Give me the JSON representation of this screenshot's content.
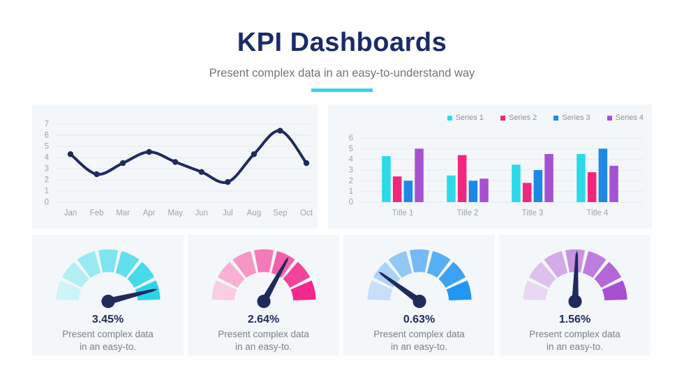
{
  "header": {
    "title": "KPI Dashboards",
    "subtitle": "Present complex data in an easy-to-understand way"
  },
  "chart_data": [
    {
      "type": "line",
      "x": [
        "Jan",
        "Feb",
        "Mar",
        "Apr",
        "May",
        "Jun",
        "Jul",
        "Aug",
        "Sep",
        "Oct"
      ],
      "values": [
        4.3,
        2.5,
        3.5,
        4.5,
        3.6,
        2.7,
        1.8,
        4.3,
        6.4,
        3.5
      ],
      "ylim": [
        0,
        7
      ],
      "yticks": [
        0,
        1,
        2,
        3,
        4,
        5,
        6,
        7
      ],
      "grid": true,
      "legend": "none",
      "line_color": "#1F2A5E"
    },
    {
      "type": "bar",
      "categories": [
        "Title 1",
        "Title 2",
        "Title 3",
        "Title 4"
      ],
      "series": [
        {
          "name": "Series 1",
          "color": "#2BD9EA",
          "values": [
            4.3,
            2.5,
            3.5,
            4.5
          ]
        },
        {
          "name": "Series 2",
          "color": "#F0267F",
          "values": [
            2.4,
            4.4,
            1.8,
            2.8
          ]
        },
        {
          "name": "Series 3",
          "color": "#1E88E5",
          "values": [
            2.0,
            2.0,
            3.0,
            5.0
          ]
        },
        {
          "name": "Series 4",
          "color": "#A751D1",
          "values": [
            5.0,
            2.2,
            4.5,
            3.4
          ]
        }
      ],
      "ylim": [
        0,
        6
      ],
      "yticks": [
        0,
        1,
        2,
        3,
        4,
        5,
        6
      ],
      "grid": true,
      "legend_position": "top-right"
    }
  ],
  "gauges": [
    {
      "value_label": "3.45%",
      "description_line1": "Present complex data",
      "description_line2": "in an easy-to.",
      "needle_angle_deg": 14,
      "segment_colors": [
        "#CDF4F8",
        "#B2EFF5",
        "#97EAF3",
        "#7CE5F0",
        "#61DFEE",
        "#46DAEB",
        "#2BD5E9"
      ]
    },
    {
      "value_label": "2.64%",
      "description_line1": "Present complex data",
      "description_line2": "in an easy-to.",
      "needle_angle_deg": 61,
      "segment_colors": [
        "#F9CDE3",
        "#F8B1D5",
        "#F796C6",
        "#F67AB8",
        "#F55EAA",
        "#F4439B",
        "#F3278D"
      ]
    },
    {
      "value_label": "0.63%",
      "description_line1": "Present complex data",
      "description_line2": "in an easy-to.",
      "needle_angle_deg": 144,
      "segment_colors": [
        "#C7DFF8",
        "#ABD3F7",
        "#90C7F6",
        "#74BAF6",
        "#58AEF5",
        "#3DA2F4",
        "#2196F3"
      ]
    },
    {
      "value_label": "1.56%",
      "description_line1": "Present complex data",
      "description_line2": "in an easy-to.",
      "needle_angle_deg": 88,
      "segment_colors": [
        "#E9D7F3",
        "#DEC0EE",
        "#D4AAE8",
        "#C993E3",
        "#BE7CDE",
        "#B466D8",
        "#A94FD3"
      ]
    }
  ],
  "colors": {
    "accent": "#2FD9EA",
    "title_navy": "#1B2A6B",
    "needle_navy": "#1F2A5E",
    "panel_bg": "#F4F7F9",
    "subtitle_gray": "#6F757B",
    "tick_gray": "#9CA4AB",
    "grid_line": "#E5EAEE"
  }
}
